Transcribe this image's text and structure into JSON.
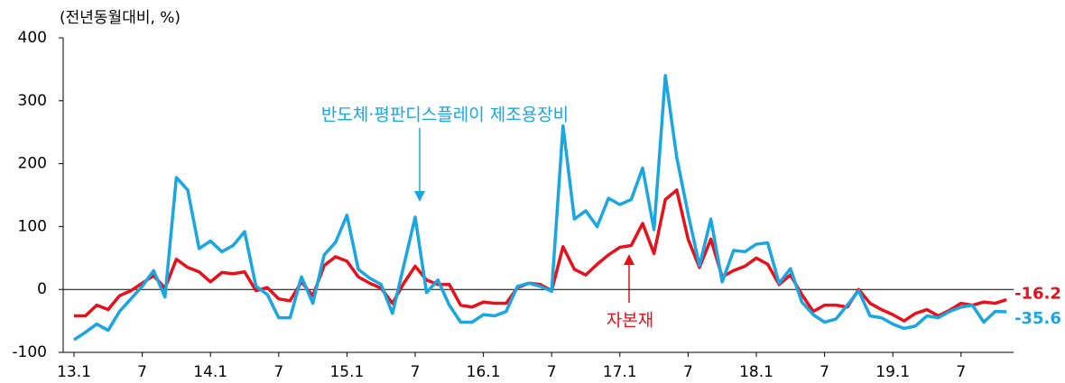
{
  "chart_data": {
    "type": "line",
    "subtitle": "(전년동월대비, %)",
    "categories": [
      "13.1",
      null,
      null,
      null,
      null,
      null,
      "7",
      null,
      null,
      null,
      null,
      null,
      "14.1",
      null,
      null,
      null,
      null,
      null,
      "7",
      null,
      null,
      null,
      null,
      null,
      "15.1",
      null,
      null,
      null,
      null,
      null,
      "7",
      null,
      null,
      null,
      null,
      null,
      "16.1",
      null,
      null,
      null,
      null,
      null,
      "7",
      null,
      null,
      null,
      null,
      null,
      "17.1",
      null,
      null,
      null,
      null,
      null,
      "7",
      null,
      null,
      null,
      null,
      null,
      "18.1",
      null,
      null,
      null,
      null,
      null,
      "7",
      null,
      null,
      null,
      null,
      null,
      "19.1",
      null,
      null,
      null,
      null,
      null,
      "7",
      null,
      null,
      null,
      null
    ],
    "series": [
      {
        "name": "자본재",
        "color": "#e8101a",
        "values": [
          -42,
          -42,
          -25,
          -32,
          -10,
          -2,
          10,
          22,
          2,
          48,
          35,
          28,
          12,
          27,
          25,
          28,
          -2,
          3,
          -15,
          -18,
          12,
          -10,
          38,
          52,
          45,
          20,
          10,
          2,
          -22,
          10,
          37,
          15,
          8,
          8,
          -25,
          -28,
          -20,
          -22,
          -22,
          3,
          10,
          8,
          -2,
          68,
          32,
          23,
          40,
          55,
          67,
          70,
          105,
          57,
          143,
          158,
          80,
          35,
          80,
          20,
          30,
          37,
          50,
          40,
          8,
          23,
          -8,
          -35,
          -25,
          -25,
          -28,
          0,
          -22,
          -32,
          -40,
          -50,
          -38,
          -32,
          -42,
          -33,
          -22,
          -25,
          -20,
          -22,
          -16.2
        ]
      },
      {
        "name": "반도체·평판디스플레이 제조용장비",
        "color": "#1aa6e0",
        "values": [
          -80,
          -68,
          -55,
          -65,
          -35,
          -15,
          5,
          30,
          -12,
          178,
          158,
          65,
          77,
          60,
          70,
          92,
          5,
          -8,
          -45,
          -45,
          20,
          -22,
          55,
          75,
          118,
          32,
          18,
          8,
          -38,
          38,
          115,
          -5,
          15,
          -25,
          -52,
          -52,
          -40,
          -42,
          -35,
          5,
          10,
          5,
          -3,
          260,
          112,
          125,
          100,
          145,
          135,
          143,
          193,
          95,
          340,
          210,
          120,
          38,
          112,
          12,
          62,
          60,
          72,
          74,
          10,
          33,
          -20,
          -40,
          -52,
          -47,
          -25,
          -2,
          -42,
          -45,
          -55,
          -62,
          -58,
          -42,
          -45,
          -35,
          -28,
          -25,
          -52,
          -35,
          -35.6
        ]
      }
    ],
    "ylim": [
      -100,
      400
    ],
    "yticks": [
      -100,
      0,
      100,
      200,
      300,
      400
    ]
  }
}
